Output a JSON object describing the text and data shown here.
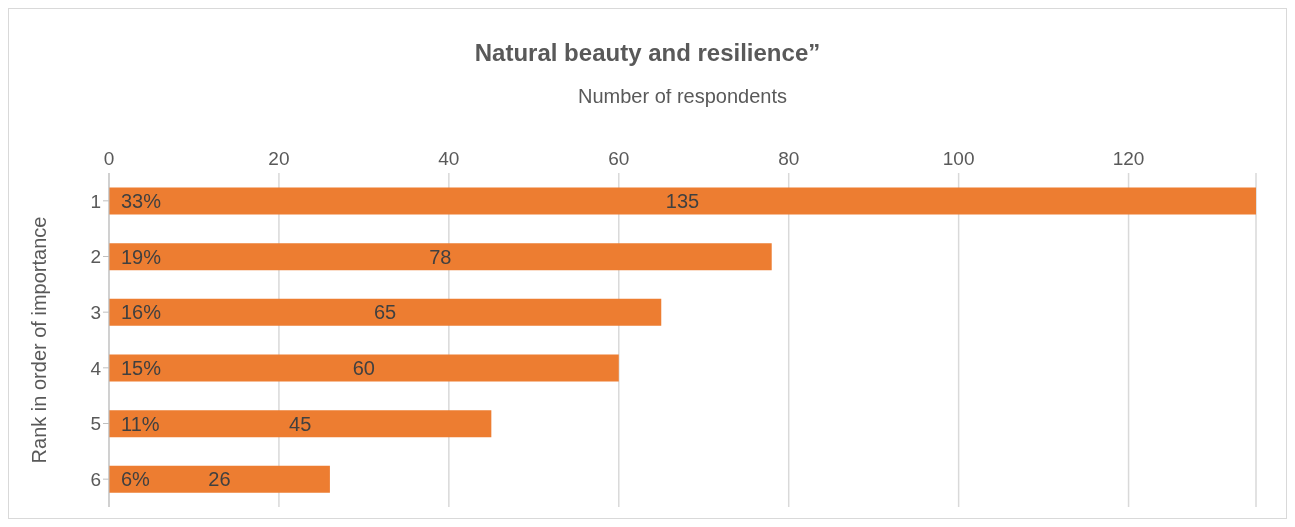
{
  "chart_data": {
    "type": "bar",
    "orientation": "horizontal",
    "title": "Natural beauty and resilience”",
    "xlabel": "Number of respondents",
    "ylabel": "Rank in order of importance",
    "categories": [
      "1",
      "2",
      "3",
      "4",
      "5",
      "6"
    ],
    "values": [
      135,
      78,
      65,
      60,
      45,
      26
    ],
    "color": "#ed7d31",
    "xlim": [
      0,
      135
    ],
    "xticks": [
      0,
      20,
      40,
      60,
      80,
      100,
      120
    ],
    "grid": "x",
    "data_labels": true,
    "annotations": [
      "33%",
      "19%",
      "16%",
      "15%",
      "11%",
      "6%"
    ]
  }
}
